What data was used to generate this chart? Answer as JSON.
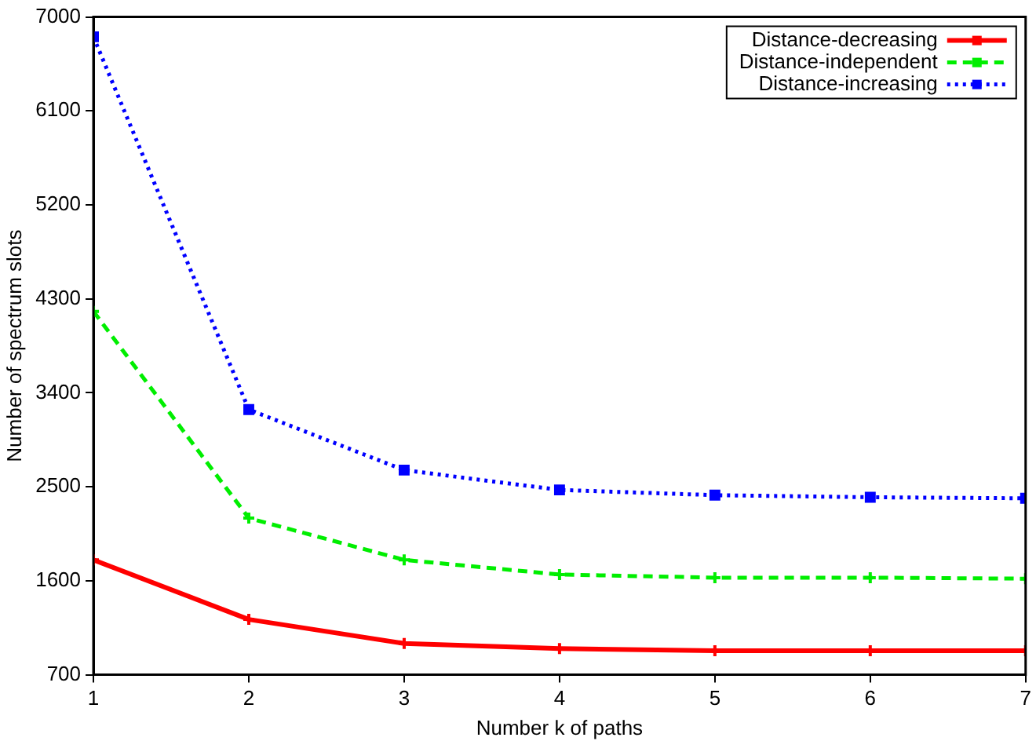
{
  "chart_data": {
    "type": "line",
    "xlabel": "Number k of paths",
    "ylabel": "Number of spectrum slots",
    "x": [
      1,
      2,
      3,
      4,
      5,
      6,
      7
    ],
    "xlim": [
      1,
      7
    ],
    "xticks": [
      1,
      2,
      3,
      4,
      5,
      6,
      7
    ],
    "ylim": [
      700,
      7000
    ],
    "yticks": [
      700,
      1600,
      2500,
      3400,
      4300,
      5200,
      6100,
      7000
    ],
    "grid": false,
    "legend": "top right",
    "series": [
      {
        "name": "Distance-decreasing",
        "color": "#ff0000",
        "line_style": "solid",
        "marker": "cross",
        "values": [
          1800,
          1230,
          1000,
          950,
          930,
          930,
          930
        ]
      },
      {
        "name": "Distance-independent",
        "color": "#00ee00",
        "line_style": "dashed",
        "marker": "cross",
        "values": [
          4180,
          2200,
          1800,
          1660,
          1630,
          1630,
          1620
        ]
      },
      {
        "name": "Distance-increasing",
        "color": "#0000ff",
        "line_style": "dotted",
        "marker": "square",
        "values": [
          6810,
          3240,
          2660,
          2470,
          2420,
          2400,
          2390
        ]
      }
    ]
  }
}
